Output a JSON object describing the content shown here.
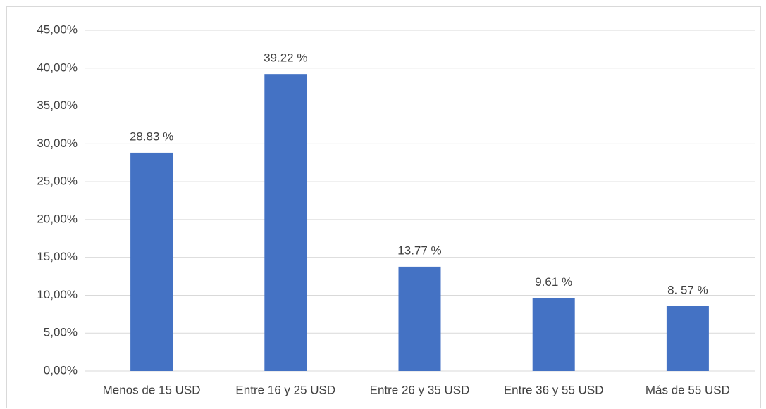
{
  "chart_data": {
    "type": "bar",
    "categories": [
      "Menos de 15 USD",
      "Entre 16 y 25 USD",
      "Entre 26 y 35 USD",
      "Entre 36 y 55 USD",
      "Más de 55 USD"
    ],
    "values": [
      28.83,
      39.22,
      13.77,
      9.61,
      8.57
    ],
    "value_labels": [
      "28.83 %",
      "39.22 %",
      "13.77 %",
      "9.61 %",
      "8. 57 %"
    ],
    "color": "#4472c4",
    "ylim": [
      0,
      45
    ],
    "yticks": [
      {
        "value": 0,
        "label": "0,00%"
      },
      {
        "value": 5,
        "label": "5,00%"
      },
      {
        "value": 10,
        "label": "10,00%"
      },
      {
        "value": 15,
        "label": "15,00%"
      },
      {
        "value": 20,
        "label": "20,00%"
      },
      {
        "value": 25,
        "label": "25,00%"
      },
      {
        "value": 30,
        "label": "30,00%"
      },
      {
        "value": 35,
        "label": "35,00%"
      },
      {
        "value": 40,
        "label": "40,00%"
      },
      {
        "value": 45,
        "label": "45,00%"
      }
    ],
    "grid": true
  }
}
